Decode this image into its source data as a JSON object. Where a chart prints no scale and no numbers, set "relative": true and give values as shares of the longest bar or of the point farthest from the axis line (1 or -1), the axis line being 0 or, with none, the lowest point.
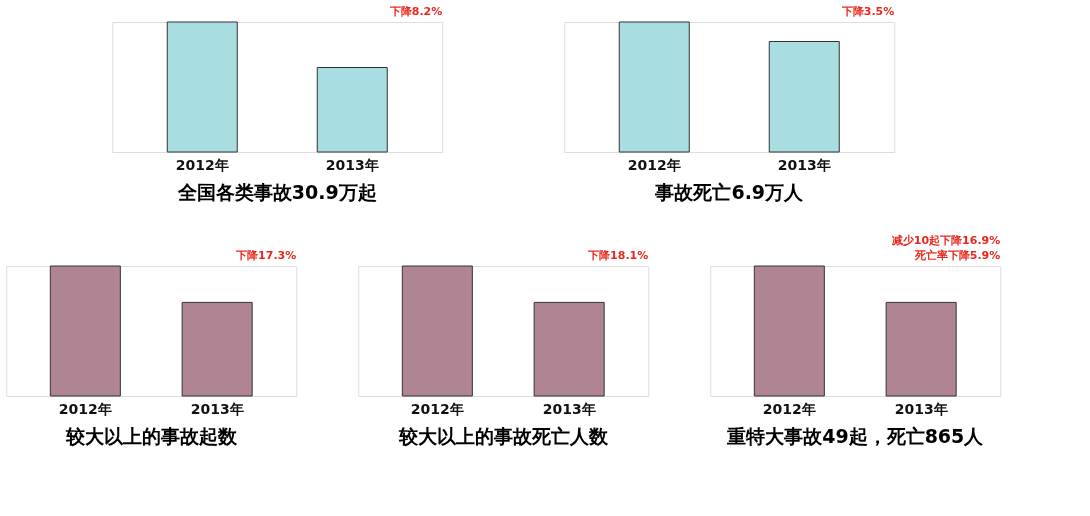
{
  "chart_data": [
    {
      "type": "bar",
      "title": "全国各类事故30.9万起",
      "categories": [
        "2012年",
        "2013年"
      ],
      "values": [
        1,
        0.65
      ],
      "colors": [
        "#a8dde2",
        "#a8dde2"
      ],
      "relative": true,
      "annotations": [
        "下降8.2%"
      ]
    },
    {
      "type": "bar",
      "title": "事故死亡6.9万人",
      "categories": [
        "2012年",
        "2013年"
      ],
      "values": [
        1,
        0.85
      ],
      "colors": [
        "#a8dde2",
        "#a8dde2"
      ],
      "relative": true,
      "annotations": [
        "下降3.5%"
      ]
    },
    {
      "type": "bar",
      "title": "较大以上的事故起数",
      "categories": [
        "2012年",
        "2013年"
      ],
      "values": [
        1,
        0.72
      ],
      "colors": [
        "#b08593",
        "#b08593"
      ],
      "relative": true,
      "annotations": [
        "下降17.3%"
      ]
    },
    {
      "type": "bar",
      "title": "较大以上的事故死亡人数",
      "categories": [
        "2012年",
        "2013年"
      ],
      "values": [
        1,
        0.72
      ],
      "colors": [
        "#b08593",
        "#b08593"
      ],
      "relative": true,
      "annotations": [
        "下降18.1%"
      ]
    },
    {
      "type": "bar",
      "title": "重特大事故49起，死亡865人",
      "categories": [
        "2012年",
        "2013年"
      ],
      "values": [
        1,
        0.72
      ],
      "colors": [
        "#b08593",
        "#b08593"
      ],
      "relative": true,
      "annotations": [
        "减少10起下降16.9%",
        "死亡率下降5.9%"
      ]
    }
  ]
}
